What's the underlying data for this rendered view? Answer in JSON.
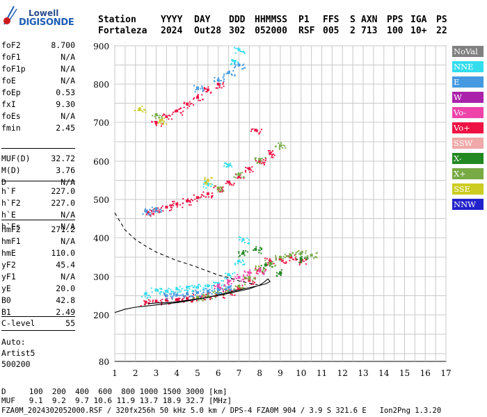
{
  "logo": {
    "line1": "Lowell",
    "line2": "DIGISONDE"
  },
  "header": {
    "labels": [
      "Station",
      "YYYY",
      "DAY",
      "DDD",
      "HHMMSS",
      "P1",
      "FFS",
      "S",
      "AXN",
      "PPS",
      "IGA",
      "PS"
    ],
    "values": [
      "Fortaleza",
      "2024",
      "Out28",
      "302",
      "052000",
      "RSF",
      "005",
      "2",
      "713",
      "100",
      "10+",
      "22"
    ]
  },
  "params_a": [
    {
      "name": "foF2",
      "value": "8.700"
    },
    {
      "name": "foF1",
      "value": "N/A"
    },
    {
      "name": "foF1p",
      "value": "N/A"
    },
    {
      "name": "foE",
      "value": "N/A"
    },
    {
      "name": "foEp",
      "value": "0.53"
    },
    {
      "name": "fxI",
      "value": "9.30"
    },
    {
      "name": "foEs",
      "value": "N/A"
    },
    {
      "name": "fmin",
      "value": "2.45"
    }
  ],
  "params_b": [
    {
      "name": "MUF(D)",
      "value": "32.72"
    },
    {
      "name": "M(D)",
      "value": "3.76"
    },
    {
      "name": "D",
      "value": "N/A"
    }
  ],
  "params_c": [
    {
      "name": "h`F",
      "value": "227.0"
    },
    {
      "name": "h`F2",
      "value": "227.0"
    },
    {
      "name": "h`E",
      "value": "N/A"
    },
    {
      "name": "h`Es",
      "value": "N/A"
    }
  ],
  "params_d": [
    {
      "name": "hmF2",
      "value": "271.2"
    },
    {
      "name": "hmF1",
      "value": "N/A"
    },
    {
      "name": "hmE",
      "value": "110.0"
    },
    {
      "name": "yF2",
      "value": "45.4"
    },
    {
      "name": "yF1",
      "value": "N/A"
    },
    {
      "name": "yE",
      "value": "20.0"
    },
    {
      "name": "B0",
      "value": "42.8"
    },
    {
      "name": "B1",
      "value": "2.49"
    }
  ],
  "c_level": {
    "name": "C-level",
    "value": "55"
  },
  "auto": {
    "line1": "Auto:",
    "line2": "Artist5",
    "line3": "500200"
  },
  "legend": [
    {
      "label": "NoVal",
      "color": "#808080"
    },
    {
      "label": "NNE",
      "color": "#33ddee"
    },
    {
      "label": "E",
      "color": "#4499e0"
    },
    {
      "label": "W",
      "color": "#aa22aa"
    },
    {
      "label": "Vo-",
      "color": "#ee44aa"
    },
    {
      "label": "Vo+",
      "color": "#ee1144"
    },
    {
      "label": "SSW",
      "color": "#f0a8a8"
    },
    {
      "label": "X-",
      "color": "#228822"
    },
    {
      "label": "X+",
      "color": "#77aa44"
    },
    {
      "label": "SSE",
      "color": "#cccc22"
    },
    {
      "label": "NNW",
      "color": "#2222cc"
    }
  ],
  "footer": {
    "line1": "D     100  200  400  600  800 1000 1500 3000 [km]",
    "line2": "MUF   9.1  9.2  9.7 10.6 11.9 13.7 18.9 32.7 [MHz]",
    "line3": "FZA0M_2024302052000.RSF / 320fx256h 50 kHz 5.0 km / DPS-4 FZA0M 904 / 3.9 S 321.6 E   Ion2Png 1.3.20"
  },
  "chart_data": {
    "type": "scatter",
    "x_ticks": [
      "1",
      "2",
      "3",
      "4",
      "5",
      "6",
      "7",
      "8",
      "9",
      "10",
      "11",
      "12",
      "13",
      "14",
      "15",
      "16",
      "17"
    ],
    "y_ticks": [
      "900",
      "800",
      "700",
      "600",
      "500",
      "400",
      "300",
      "200",
      "80"
    ],
    "xlim": [
      1,
      17
    ],
    "y_tick_values": [
      900,
      800,
      700,
      600,
      500,
      400,
      300,
      200,
      80
    ],
    "grid": true,
    "series": [
      {
        "name": "Vo+",
        "color": "#ee1144",
        "points": [
          [
            2.5,
            233
          ],
          [
            3.0,
            236
          ],
          [
            3.5,
            238
          ],
          [
            4.0,
            240
          ],
          [
            4.5,
            243
          ],
          [
            5.0,
            246
          ],
          [
            5.5,
            250
          ],
          [
            6.0,
            254
          ],
          [
            6.5,
            262
          ],
          [
            7.0,
            270
          ],
          [
            7.5,
            290
          ],
          [
            8.0,
            318
          ],
          [
            8.5,
            340
          ],
          [
            9.0,
            345
          ],
          [
            9.5,
            350
          ],
          [
            10.0,
            340
          ],
          [
            2.6,
            466
          ],
          [
            3.0,
            472
          ],
          [
            3.5,
            480
          ],
          [
            4.0,
            488
          ],
          [
            4.5,
            496
          ],
          [
            5.0,
            505
          ],
          [
            5.5,
            515
          ],
          [
            6.0,
            528
          ],
          [
            6.5,
            545
          ],
          [
            7.0,
            560
          ],
          [
            7.5,
            580
          ],
          [
            8.0,
            600
          ],
          [
            8.5,
            620
          ],
          [
            7.8,
            680
          ],
          [
            3.0,
            700
          ],
          [
            3.5,
            715
          ],
          [
            4.0,
            730
          ],
          [
            4.5,
            748
          ],
          [
            5.0,
            765
          ],
          [
            5.5,
            785
          ],
          [
            6.0,
            800
          ]
        ]
      },
      {
        "name": "X+",
        "color": "#77aa44",
        "points": [
          [
            5.0,
            246
          ],
          [
            5.5,
            250
          ],
          [
            6.0,
            256
          ],
          [
            6.5,
            262
          ],
          [
            7.0,
            275
          ],
          [
            7.5,
            298
          ],
          [
            8.0,
            320
          ],
          [
            8.5,
            335
          ],
          [
            9.0,
            350
          ],
          [
            9.5,
            355
          ],
          [
            10.0,
            360
          ],
          [
            10.5,
            355
          ],
          [
            6.0,
            530
          ],
          [
            7.0,
            565
          ],
          [
            8.0,
            605
          ],
          [
            9.0,
            640
          ],
          [
            3.0,
            720
          ]
        ]
      },
      {
        "name": "X-",
        "color": "#228822",
        "points": [
          [
            7.2,
            360
          ],
          [
            7.8,
            370
          ],
          [
            8.3,
            330
          ],
          [
            9.0,
            310
          ],
          [
            10.0,
            345
          ]
        ]
      },
      {
        "name": "NNE",
        "color": "#33ddee",
        "points": [
          [
            2.5,
            255
          ],
          [
            3.0,
            265
          ],
          [
            3.5,
            262
          ],
          [
            4.0,
            268
          ],
          [
            4.5,
            272
          ],
          [
            5.0,
            272
          ],
          [
            5.5,
            276
          ],
          [
            6.0,
            282
          ],
          [
            6.5,
            305
          ],
          [
            7.0,
            340
          ],
          [
            7.2,
            395
          ],
          [
            5.5,
            540
          ],
          [
            6.5,
            590
          ],
          [
            6.8,
            860
          ],
          [
            7.0,
            890
          ]
        ]
      },
      {
        "name": "E",
        "color": "#4499e0",
        "points": [
          [
            3.5,
            250
          ],
          [
            4.0,
            252
          ],
          [
            4.5,
            255
          ],
          [
            5.0,
            258
          ],
          [
            5.5,
            262
          ],
          [
            6.0,
            266
          ],
          [
            6.5,
            272
          ],
          [
            2.5,
            470
          ],
          [
            3.0,
            476
          ],
          [
            5.0,
            790
          ],
          [
            6.0,
            810
          ],
          [
            6.5,
            830
          ],
          [
            7.0,
            850
          ]
        ]
      },
      {
        "name": "Vo-",
        "color": "#ee44aa",
        "points": [
          [
            6.0,
            275
          ],
          [
            6.5,
            288
          ],
          [
            7.0,
            298
          ],
          [
            7.5,
            310
          ],
          [
            8.0,
            315
          ]
        ]
      },
      {
        "name": "SSE",
        "color": "#cccc22",
        "points": [
          [
            2.2,
            735
          ],
          [
            3.2,
            705
          ],
          [
            5.5,
            550
          ]
        ]
      }
    ],
    "traces": [
      {
        "style": "dashed",
        "points": [
          [
            1.0,
            465
          ],
          [
            1.5,
            420
          ],
          [
            2.0,
            395
          ],
          [
            2.5,
            378
          ],
          [
            3.0,
            363
          ],
          [
            3.5,
            352
          ],
          [
            4.0,
            341
          ],
          [
            4.5,
            333
          ],
          [
            5.0,
            324
          ],
          [
            5.5,
            314
          ],
          [
            6.0,
            304
          ],
          [
            6.5,
            297
          ],
          [
            7.0,
            289
          ],
          [
            7.5,
            283
          ],
          [
            7.9,
            279
          ]
        ]
      },
      {
        "style": "solid",
        "points": [
          [
            1.0,
            206
          ],
          [
            1.5,
            215
          ],
          [
            2.0,
            220
          ],
          [
            2.5,
            223
          ],
          [
            3.0,
            226
          ],
          [
            3.5,
            229
          ],
          [
            4.0,
            232
          ],
          [
            4.5,
            236
          ],
          [
            5.0,
            241
          ],
          [
            5.5,
            246
          ],
          [
            6.0,
            252
          ],
          [
            6.5,
            259
          ],
          [
            7.0,
            265
          ],
          [
            7.5,
            271
          ],
          [
            8.0,
            277
          ],
          [
            8.3,
            281
          ],
          [
            8.5,
            287
          ],
          [
            8.4,
            294
          ],
          [
            8.2,
            285
          ],
          [
            8.0,
            278
          ],
          [
            7.5,
            268
          ],
          [
            7.0,
            262
          ],
          [
            6.5,
            256
          ],
          [
            6.0,
            251
          ],
          [
            5.5,
            246
          ],
          [
            5.0,
            242
          ],
          [
            4.5,
            238
          ],
          [
            4.0,
            234
          ],
          [
            3.5,
            232
          ],
          [
            3.0,
            231
          ],
          [
            2.6,
            229
          ]
        ]
      }
    ]
  }
}
